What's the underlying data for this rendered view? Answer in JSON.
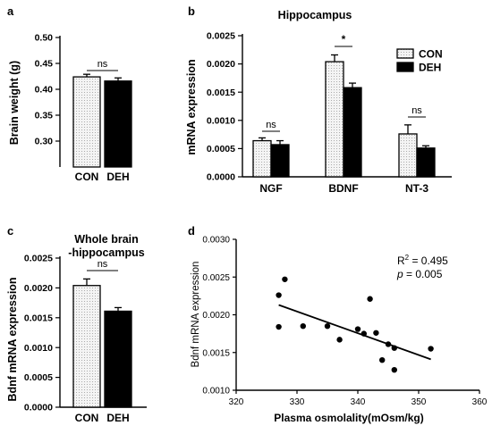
{
  "colors": {
    "con": "#f1f1f1",
    "deh": "#000000",
    "line": "#000000"
  },
  "chart_data": [
    {
      "panel": "a",
      "type": "bar",
      "title": "",
      "ylabel": "Brain weight (g)",
      "ylim": [
        0.25,
        0.5
      ],
      "yticks": [
        "0.30",
        "0.35",
        "0.40",
        "0.45",
        "0.50"
      ],
      "categories": [
        "CON",
        "DEH"
      ],
      "values": [
        0.424,
        0.416
      ],
      "errors": [
        0.005,
        0.006
      ],
      "significance": [
        {
          "label": "ns",
          "between": [
            0,
            1
          ]
        }
      ]
    },
    {
      "panel": "b",
      "type": "bar",
      "title": "Hippocampus",
      "ylabel": "mRNA expression",
      "ylim": [
        0,
        0.0025
      ],
      "yticks": [
        "0.0000",
        "0.0005",
        "0.0010",
        "0.0015",
        "0.0020",
        "0.0025"
      ],
      "categories": [
        "NGF",
        "BDNF",
        "NT-3"
      ],
      "series": [
        {
          "name": "CON",
          "values": [
            0.00064,
            0.00204,
            0.00076
          ],
          "errors": [
            5e-05,
            0.00012,
            0.00016
          ]
        },
        {
          "name": "DEH",
          "values": [
            0.00057,
            0.00158,
            0.00051
          ],
          "errors": [
            7e-05,
            8e-05,
            4e-05
          ]
        }
      ],
      "legend": [
        "CON",
        "DEH"
      ],
      "legend_position": "top-right",
      "significance": [
        {
          "label": "ns",
          "category": 0
        },
        {
          "label": "*",
          "category": 1
        },
        {
          "label": "ns",
          "category": 2
        }
      ]
    },
    {
      "panel": "c",
      "type": "bar",
      "title": "Whole brain\n-hippocampus",
      "title_lines": [
        "Whole brain",
        "-hippocampus"
      ],
      "ylabel": "Bdnf mRNA expression",
      "ylim": [
        0,
        0.0025
      ],
      "yticks": [
        "0.0000",
        "0.0005",
        "0.0010",
        "0.0015",
        "0.0020",
        "0.0025"
      ],
      "categories": [
        "CON",
        "DEH"
      ],
      "values": [
        0.00204,
        0.00161
      ],
      "errors": [
        0.00011,
        6e-05
      ],
      "significance": [
        {
          "label": "ns",
          "between": [
            0,
            1
          ]
        }
      ]
    },
    {
      "panel": "d",
      "type": "scatter",
      "title": "",
      "xlabel": "Plasma osmolality(mOsm/kg)",
      "ylabel": "Bdnf mRNA expression",
      "xlim": [
        320,
        360
      ],
      "ylim": [
        0.001,
        0.003
      ],
      "xticks": [
        "320",
        "330",
        "340",
        "350",
        "360"
      ],
      "yticks": [
        "0.0010",
        "0.0015",
        "0.0020",
        "0.0025",
        "0.0030"
      ],
      "points": [
        [
          327,
          0.00226
        ],
        [
          327,
          0.00184
        ],
        [
          328,
          0.00247
        ],
        [
          331,
          0.00185
        ],
        [
          335,
          0.00185
        ],
        [
          337,
          0.00167
        ],
        [
          340,
          0.00181
        ],
        [
          341,
          0.00175
        ],
        [
          342,
          0.00221
        ],
        [
          343,
          0.00176
        ],
        [
          344,
          0.0014
        ],
        [
          345,
          0.00161
        ],
        [
          346,
          0.00156
        ],
        [
          346,
          0.00127
        ],
        [
          352,
          0.00155
        ]
      ],
      "fit": {
        "x": [
          327,
          352
        ],
        "y": [
          0.00213,
          0.00141
        ]
      },
      "annotations": {
        "r2_prefix": "R",
        "r2_exp": "2",
        "r2_value": " = 0.495",
        "p_symbol": "p",
        "p_value": " = 0.005"
      }
    }
  ]
}
